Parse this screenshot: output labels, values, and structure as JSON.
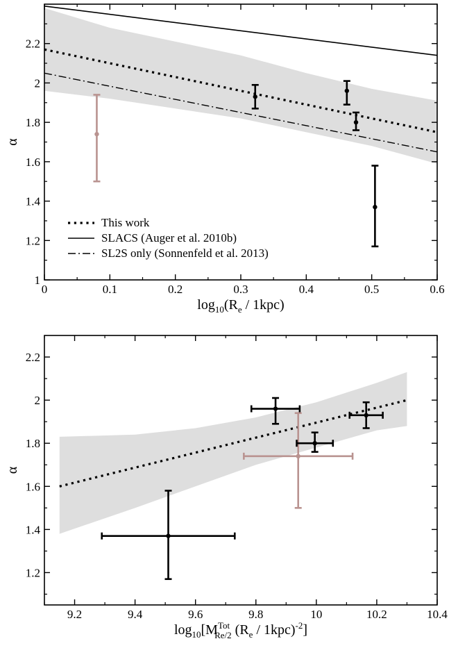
{
  "chart_data": [
    {
      "type": "scatter",
      "ylabel": "α",
      "xlabel_prefix": "log",
      "xlabel_sub": "10",
      "xlabel_body": "(R",
      "xlabel_sub2": "e",
      "xlabel_tail": " / 1kpc)",
      "xlim": [
        0,
        0.6
      ],
      "ylim": [
        1,
        2.4
      ],
      "xticks": [
        "0",
        "0.1",
        "0.2",
        "0.3",
        "0.4",
        "0.5",
        "0.6"
      ],
      "xtick_values": [
        0,
        0.1,
        0.2,
        0.3,
        0.4,
        0.5,
        0.6
      ],
      "yticks": [
        "1",
        "1.2",
        "1.4",
        "1.6",
        "1.8",
        "2",
        "2.2"
      ],
      "ytick_values": [
        1,
        1.2,
        1.4,
        1.6,
        1.8,
        2.0,
        2.2
      ],
      "band": {
        "x": [
          0,
          0.1,
          0.2,
          0.3,
          0.4,
          0.5,
          0.6
        ],
        "upper": [
          2.38,
          2.28,
          2.21,
          2.14,
          2.05,
          1.97,
          1.91
        ],
        "lower": [
          1.96,
          1.92,
          1.87,
          1.82,
          1.75,
          1.68,
          1.59
        ],
        "color": "#dedede"
      },
      "lines": [
        {
          "name": "This work",
          "style": "dotted",
          "x": [
            0,
            0.6
          ],
          "y": [
            2.17,
            1.75
          ]
        },
        {
          "name": "SLACS (Auger et al. 2010b)",
          "style": "solid",
          "x": [
            0,
            0.6
          ],
          "y": [
            2.39,
            2.14
          ]
        },
        {
          "name": "SL2S only (Sonnenfeld et al. 2013)",
          "style": "dashdot",
          "x": [
            0,
            0.6
          ],
          "y": [
            2.05,
            1.65
          ]
        }
      ],
      "points": [
        {
          "x": 0.08,
          "y": 1.74,
          "yerr_lo": 0.24,
          "yerr_hi": 0.2,
          "color": "#b99390"
        },
        {
          "x": 0.322,
          "y": 1.93,
          "yerr_lo": 0.06,
          "yerr_hi": 0.06,
          "color": "#000000"
        },
        {
          "x": 0.462,
          "y": 1.96,
          "yerr_lo": 0.07,
          "yerr_hi": 0.05,
          "color": "#000000"
        },
        {
          "x": 0.476,
          "y": 1.8,
          "yerr_lo": 0.04,
          "yerr_hi": 0.05,
          "color": "#000000"
        },
        {
          "x": 0.505,
          "y": 1.37,
          "yerr_lo": 0.2,
          "yerr_hi": 0.21,
          "color": "#000000"
        }
      ],
      "legend": {
        "placement": "bottom-left",
        "entries": [
          "This work",
          "SLACS (Auger et al. 2010b)",
          "SL2S only (Sonnenfeld et al. 2013)"
        ]
      }
    },
    {
      "type": "scatter",
      "ylabel": "α",
      "xlabel_prefix": "log",
      "xlabel_sub": "10",
      "xlabel_body": "[M",
      "xlabel_sup": "Tot",
      "xlabel_sub2": "Re/2",
      "xlabel_tail": " (R",
      "xlabel_sub3": "e",
      "xlabel_tail2": " / 1kpc)",
      "xlabel_sup2": "-2",
      "xlabel_end": "]",
      "xlim": [
        9.1,
        10.4
      ],
      "ylim": [
        1.05,
        2.3
      ],
      "xticks": [
        "9.2",
        "9.4",
        "9.6",
        "9.8",
        "10",
        "10.2",
        "10.4"
      ],
      "xtick_values": [
        9.2,
        9.4,
        9.6,
        9.8,
        10.0,
        10.2,
        10.4
      ],
      "yticks": [
        "1.2",
        "1.4",
        "1.6",
        "1.8",
        "2",
        "2.2"
      ],
      "ytick_values": [
        1.2,
        1.4,
        1.6,
        1.8,
        2.0,
        2.2
      ],
      "band": {
        "x": [
          9.15,
          9.4,
          9.6,
          9.8,
          10.0,
          10.2,
          10.3
        ],
        "upper": [
          1.83,
          1.84,
          1.87,
          1.92,
          1.99,
          2.08,
          2.13
        ],
        "lower": [
          1.38,
          1.5,
          1.6,
          1.7,
          1.78,
          1.86,
          1.88
        ],
        "color": "#dedede"
      },
      "lines": [
        {
          "name": "This work",
          "style": "dotted",
          "x": [
            9.15,
            10.3
          ],
          "y": [
            1.6,
            2.0
          ]
        }
      ],
      "points": [
        {
          "x": 9.94,
          "y": 1.74,
          "xerr_lo": 0.18,
          "xerr_hi": 0.18,
          "yerr_lo": 0.24,
          "yerr_hi": 0.2,
          "color": "#b99390"
        },
        {
          "x": 9.51,
          "y": 1.37,
          "xerr_lo": 0.22,
          "xerr_hi": 0.22,
          "yerr_lo": 0.2,
          "yerr_hi": 0.21,
          "color": "#000000"
        },
        {
          "x": 9.865,
          "y": 1.96,
          "xerr_lo": 0.08,
          "xerr_hi": 0.08,
          "yerr_lo": 0.07,
          "yerr_hi": 0.05,
          "color": "#000000"
        },
        {
          "x": 9.995,
          "y": 1.8,
          "xerr_lo": 0.06,
          "xerr_hi": 0.06,
          "yerr_lo": 0.04,
          "yerr_hi": 0.05,
          "color": "#000000"
        },
        {
          "x": 10.165,
          "y": 1.93,
          "xerr_lo": 0.055,
          "xerr_hi": 0.055,
          "yerr_lo": 0.06,
          "yerr_hi": 0.06,
          "color": "#000000"
        }
      ]
    }
  ]
}
